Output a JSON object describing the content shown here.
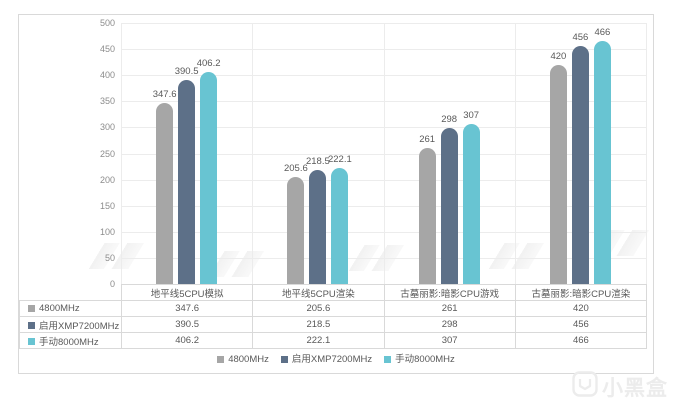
{
  "chart_data": {
    "type": "bar",
    "title": "",
    "categories": [
      "地平线5CPU模拟",
      "地平线5CPU渲染",
      "古墓丽影:暗影CPU游戏",
      "古墓丽影:暗影CPU渲染"
    ],
    "series": [
      {
        "name": "4800MHz",
        "values": [
          347.6,
          205.6,
          261,
          420
        ]
      },
      {
        "name": "启用XMP7200MHz",
        "values": [
          390.5,
          218.5,
          298,
          456
        ]
      },
      {
        "name": "手动8000MHz",
        "values": [
          406.2,
          222.1,
          307,
          466
        ]
      }
    ],
    "ylim": [
      0,
      500
    ],
    "ytick_step": 50,
    "grid": true,
    "legend_position": "bottom",
    "data_table_shown": true,
    "value_labels_shown": true
  },
  "legend": {
    "items": [
      "4800MHz",
      "启用XMP7200MHz",
      "手动8000MHz"
    ]
  },
  "colors": {
    "series": [
      "#a6a6a6",
      "#5d7088",
      "#68c4d2"
    ],
    "grid": "#ececec",
    "table_border": "#d9d9d9",
    "axis_text": "#8c8c8c",
    "label_text": "#595959"
  },
  "watermark": {
    "brand": "小黑盒"
  }
}
